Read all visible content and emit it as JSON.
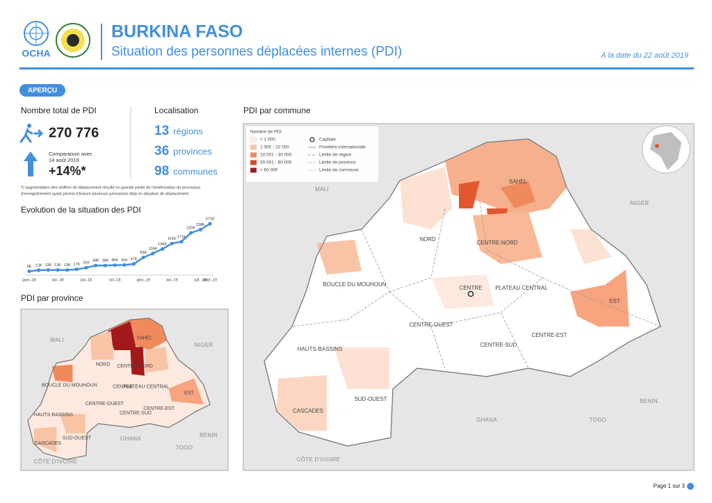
{
  "header": {
    "org": "OCHA",
    "title": "BURKINA FASO",
    "subtitle": "Situation des personnes déplacées internes (PDI)",
    "date": "A la date du 22 août 2019"
  },
  "overview": {
    "badge": "APERÇU",
    "total_heading": "Nombre total de PDI",
    "total": "270 776",
    "comparison": [
      "Comparaison avec",
      "14 août 2019"
    ],
    "change": "+14%*",
    "location_heading": "Localisation",
    "locations": [
      {
        "number": 13,
        "label": "régions"
      },
      {
        "number": 36,
        "label": "provinces"
      },
      {
        "number": 98,
        "label": "communes"
      }
    ],
    "footnote": [
      "*L'augmentation des chiffres de déplacement résulte en grande partie de l'amélioration du processus",
      "d'enregistrement ayant permis d'inclure plusieurs personnes déjà en situation de déplacement."
    ]
  },
  "chart_data": {
    "type": "line",
    "title": "Evolution de la situation des PDI",
    "categories": [
      "janv.-18",
      null,
      null,
      "avr.-18",
      null,
      null,
      "juil.-18",
      null,
      null,
      "oct.-18",
      null,
      null,
      "janv.-19",
      null,
      null,
      "avr.-19",
      null,
      null,
      "juil. -19",
      "août -19"
    ],
    "series": [
      {
        "name": "PDI",
        "color": "#418fde",
        "values": [
          6000,
          12000,
          13000,
          13000,
          13000,
          17000,
          26000,
          38000,
          38000,
          40000,
          41000,
          47000,
          83000,
          105000,
          130000,
          161000,
          171000,
          220000,
          238000,
          271000
        ],
        "value_labels": [
          "6K",
          "12K",
          "13K",
          "13K",
          "13K",
          "17K",
          "26K",
          "38K",
          "38K",
          "40K",
          "41K",
          "47K",
          "83K",
          "105K",
          "130K",
          "161K",
          "171K",
          "220K",
          "238K",
          "271K"
        ]
      }
    ]
  },
  "maps": {
    "province_title": "PDI par province",
    "commune_title": "PDI par commune",
    "countries": [
      "MALI",
      "NIGER",
      "GHANA",
      "TOGO",
      "BENIN",
      "CÔTE D'IVOIRE"
    ],
    "regions": [
      "SAHEL",
      "NORD",
      "CENTRE-NORD",
      "BOUCLE DU MOUHOUN",
      "CENTRE",
      "PLATEAU CENTRAL",
      "EST",
      "CENTRE-OUEST",
      "CENTRE-EST",
      "CENTRE-SUD",
      "HAUTS-BASSINS",
      "SUD-OUEST",
      "CASCADES"
    ],
    "legend": {
      "title": "Nombre de PDI",
      "classes": [
        {
          "label": "< 1 000",
          "color": "#fdeee6"
        },
        {
          "label": "1 000 - 10 000",
          "color": "#f9c3a6"
        },
        {
          "label": "10 001 - 30 000",
          "color": "#f08a5d"
        },
        {
          "label": "30 001 - 60 000",
          "color": "#d9472a"
        },
        {
          "label": "> 60 000",
          "color": "#a3191b"
        }
      ],
      "symbols": [
        "Capitale",
        "Frontière internationale",
        "Limite de région",
        "Limite de province",
        "Limite de commune"
      ]
    }
  },
  "footer": {
    "page": "Page 1 sur 3"
  }
}
